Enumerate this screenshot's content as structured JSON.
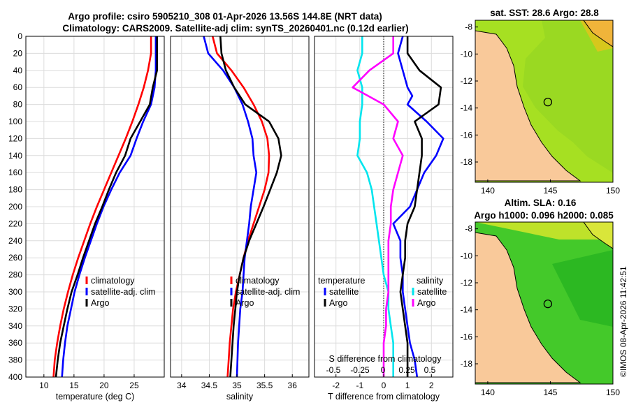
{
  "header": {
    "title_line1": "Argo profile: csiro 5905210_308 01-Apr-2026 13.56S 144.8E (NRT data)",
    "title_line2": "Climatology: CARS2009. Satellite-adj clim: synTS_20260401.nc (0.12d earlier)"
  },
  "timestamp": "©IMOS 08-Apr-2026 11:42:51",
  "colors": {
    "climatology": "#ff0000",
    "satellite": "#0000ff",
    "argo": "#000000",
    "satellite_s": "#00e5ee",
    "argo_s": "#ff00ff",
    "grid": "#dcdcdc"
  },
  "chart_data": [
    {
      "type": "line",
      "name": "temperature",
      "xlabel": "temperature (deg C)",
      "xlim": [
        7,
        30
      ],
      "xticks": [
        10,
        15,
        20,
        25
      ],
      "ylim": [
        0,
        400
      ],
      "yticks": [
        0,
        20,
        40,
        60,
        80,
        100,
        120,
        140,
        160,
        180,
        200,
        220,
        240,
        260,
        280,
        300,
        320,
        340,
        360,
        380,
        400
      ],
      "grid": true,
      "legend": [
        "climatology",
        "satellite-adj. clim",
        "Argo"
      ],
      "series": [
        {
          "name": "climatology",
          "color": "#ff0000",
          "points": [
            [
              27.8,
              0
            ],
            [
              27.8,
              20
            ],
            [
              27.3,
              40
            ],
            [
              26.6,
              60
            ],
            [
              25.7,
              80
            ],
            [
              24.7,
              100
            ],
            [
              23.6,
              120
            ],
            [
              22.4,
              140
            ],
            [
              21.2,
              160
            ],
            [
              20.0,
              180
            ],
            [
              18.8,
              200
            ],
            [
              17.7,
              220
            ],
            [
              16.7,
              240
            ],
            [
              15.7,
              260
            ],
            [
              14.8,
              280
            ],
            [
              14.0,
              300
            ],
            [
              13.3,
              320
            ],
            [
              12.7,
              340
            ],
            [
              12.2,
              360
            ],
            [
              11.8,
              380
            ],
            [
              11.6,
              400
            ]
          ]
        },
        {
          "name": "satellite-adj. clim",
          "color": "#0000ff",
          "points": [
            [
              28.6,
              0
            ],
            [
              28.6,
              20
            ],
            [
              28.6,
              40
            ],
            [
              28.4,
              60
            ],
            [
              27.8,
              80
            ],
            [
              26.5,
              100
            ],
            [
              25.4,
              120
            ],
            [
              24.4,
              140
            ],
            [
              22.6,
              160
            ],
            [
              21.2,
              180
            ],
            [
              19.9,
              200
            ],
            [
              18.8,
              220
            ],
            [
              17.8,
              240
            ],
            [
              16.8,
              260
            ],
            [
              15.9,
              280
            ],
            [
              15.1,
              300
            ],
            [
              14.5,
              320
            ],
            [
              13.9,
              340
            ],
            [
              13.5,
              360
            ],
            [
              13.2,
              380
            ],
            [
              13.0,
              400
            ]
          ]
        },
        {
          "name": "Argo",
          "color": "#000000",
          "points": [
            [
              28.8,
              0
            ],
            [
              28.8,
              20
            ],
            [
              28.8,
              40
            ],
            [
              28.1,
              60
            ],
            [
              27.6,
              80
            ],
            [
              26.0,
              100
            ],
            [
              24.4,
              120
            ],
            [
              23.5,
              140
            ],
            [
              22.0,
              160
            ],
            [
              20.8,
              180
            ],
            [
              19.7,
              200
            ],
            [
              18.5,
              220
            ],
            [
              17.5,
              240
            ],
            [
              16.5,
              260
            ],
            [
              15.6,
              280
            ],
            [
              14.6,
              300
            ],
            [
              13.9,
              320
            ],
            [
              13.3,
              340
            ],
            [
              12.7,
              360
            ],
            [
              12.3,
              380
            ],
            [
              12.0,
              400
            ]
          ]
        }
      ]
    },
    {
      "type": "line",
      "name": "salinity",
      "xlabel": "salinity",
      "xlim": [
        33.8,
        36.3
      ],
      "xticks": [
        34,
        34.5,
        35,
        35.5,
        36
      ],
      "ylim": [
        0,
        400
      ],
      "grid": true,
      "legend": [
        "climatology",
        "satellite-adj. clim",
        "Argo"
      ],
      "series": [
        {
          "name": "climatology",
          "color": "#ff0000",
          "points": [
            [
              34.56,
              0
            ],
            [
              34.64,
              20
            ],
            [
              34.9,
              40
            ],
            [
              35.12,
              60
            ],
            [
              35.3,
              80
            ],
            [
              35.45,
              100
            ],
            [
              35.55,
              120
            ],
            [
              35.58,
              140
            ],
            [
              35.57,
              160
            ],
            [
              35.5,
              180
            ],
            [
              35.4,
              200
            ],
            [
              35.3,
              220
            ],
            [
              35.2,
              240
            ],
            [
              35.12,
              260
            ],
            [
              35.05,
              280
            ],
            [
              34.98,
              300
            ],
            [
              34.93,
              320
            ],
            [
              34.9,
              340
            ],
            [
              34.87,
              360
            ],
            [
              34.85,
              380
            ],
            [
              34.83,
              400
            ]
          ]
        },
        {
          "name": "satellite-adj. clim",
          "color": "#0000ff",
          "points": [
            [
              34.4,
              0
            ],
            [
              34.48,
              20
            ],
            [
              34.75,
              40
            ],
            [
              34.95,
              60
            ],
            [
              35.1,
              80
            ],
            [
              35.2,
              100
            ],
            [
              35.28,
              120
            ],
            [
              35.3,
              140
            ],
            [
              35.35,
              160
            ],
            [
              35.3,
              180
            ],
            [
              35.25,
              200
            ],
            [
              35.22,
              220
            ],
            [
              35.18,
              240
            ],
            [
              35.14,
              260
            ],
            [
              35.12,
              280
            ],
            [
              35.1,
              300
            ],
            [
              35.06,
              320
            ],
            [
              35.04,
              340
            ],
            [
              35.02,
              360
            ],
            [
              35.01,
              380
            ],
            [
              35.0,
              400
            ]
          ]
        },
        {
          "name": "Argo",
          "color": "#000000",
          "points": [
            [
              34.7,
              0
            ],
            [
              34.72,
              20
            ],
            [
              34.8,
              40
            ],
            [
              34.95,
              60
            ],
            [
              35.15,
              80
            ],
            [
              35.58,
              100
            ],
            [
              35.75,
              120
            ],
            [
              35.8,
              140
            ],
            [
              35.72,
              160
            ],
            [
              35.6,
              180
            ],
            [
              35.48,
              200
            ],
            [
              35.35,
              220
            ],
            [
              35.22,
              240
            ],
            [
              35.12,
              260
            ],
            [
              35.05,
              280
            ],
            [
              35.0,
              300
            ],
            [
              34.97,
              320
            ],
            [
              34.94,
              340
            ],
            [
              34.92,
              360
            ],
            [
              34.9,
              380
            ],
            [
              34.88,
              400
            ]
          ]
        }
      ]
    },
    {
      "type": "line",
      "name": "differences",
      "xlabel": "T difference from climatology",
      "xlabel_top": "S difference from climatology",
      "xlim": [
        -2.9,
        2.9
      ],
      "xticks": [
        -2,
        -1,
        0,
        1,
        2
      ],
      "xticks_top": [
        "-0.5",
        "-0.25",
        "0",
        "0.25",
        "0.5"
      ],
      "ylim": [
        0,
        400
      ],
      "grid": true,
      "legend_temperature": {
        "title": "temperature",
        "entries": [
          "satellite",
          "Argo"
        ]
      },
      "legend_salinity": {
        "title": "salinity",
        "entries": [
          "satellite",
          "Argo"
        ]
      },
      "series": [
        {
          "name": "T satellite",
          "color": "#0000ff",
          "points": [
            [
              0.8,
              0
            ],
            [
              0.6,
              20
            ],
            [
              0.8,
              40
            ],
            [
              1.0,
              60
            ],
            [
              1.2,
              70
            ],
            [
              1.0,
              80
            ],
            [
              1.8,
              100
            ],
            [
              2.5,
              120
            ],
            [
              2.2,
              140
            ],
            [
              1.7,
              160
            ],
            [
              1.4,
              180
            ],
            [
              1.1,
              200
            ],
            [
              0.4,
              220
            ],
            [
              0.7,
              240
            ],
            [
              0.7,
              260
            ],
            [
              0.8,
              280
            ],
            [
              0.8,
              300
            ],
            [
              0.9,
              320
            ],
            [
              1.0,
              340
            ],
            [
              1.1,
              360
            ],
            [
              1.3,
              380
            ],
            [
              1.4,
              400
            ]
          ]
        },
        {
          "name": "T Argo",
          "color": "#000000",
          "points": [
            [
              1.0,
              0
            ],
            [
              1.0,
              20
            ],
            [
              1.5,
              40
            ],
            [
              2.4,
              60
            ],
            [
              2.3,
              80
            ],
            [
              1.3,
              100
            ],
            [
              1.6,
              120
            ],
            [
              1.6,
              140
            ],
            [
              1.5,
              160
            ],
            [
              1.4,
              180
            ],
            [
              1.3,
              200
            ],
            [
              1.0,
              220
            ],
            [
              0.9,
              240
            ],
            [
              0.9,
              260
            ],
            [
              0.8,
              280
            ],
            [
              0.7,
              300
            ],
            [
              0.8,
              320
            ],
            [
              0.9,
              340
            ],
            [
              1.0,
              360
            ],
            [
              1.0,
              380
            ],
            [
              1.0,
              400
            ]
          ]
        },
        {
          "name": "S satellite",
          "color": "#00e5ee",
          "points": [
            [
              -0.9,
              0
            ],
            [
              -0.9,
              20
            ],
            [
              -1.1,
              40
            ],
            [
              -0.9,
              60
            ],
            [
              -0.9,
              80
            ],
            [
              -1.0,
              100
            ],
            [
              -1.0,
              120
            ],
            [
              -1.1,
              140
            ],
            [
              -0.7,
              160
            ],
            [
              -0.5,
              180
            ],
            [
              -0.4,
              200
            ],
            [
              -0.3,
              220
            ],
            [
              -0.2,
              240
            ],
            [
              -0.1,
              260
            ],
            [
              0.0,
              280
            ],
            [
              0.2,
              300
            ],
            [
              0.2,
              320
            ],
            [
              0.3,
              340
            ],
            [
              0.4,
              360
            ],
            [
              0.4,
              380
            ],
            [
              0.4,
              400
            ]
          ]
        },
        {
          "name": "S Argo",
          "color": "#ff00ff",
          "points": [
            [
              0.4,
              0
            ],
            [
              0.4,
              20
            ],
            [
              -0.6,
              40
            ],
            [
              -1.3,
              60
            ],
            [
              0.0,
              80
            ],
            [
              0.6,
              100
            ],
            [
              0.4,
              120
            ],
            [
              0.8,
              140
            ],
            [
              0.6,
              160
            ],
            [
              0.4,
              180
            ],
            [
              0.3,
              200
            ],
            [
              0.3,
              220
            ],
            [
              0.2,
              240
            ],
            [
              0.2,
              260
            ],
            [
              0.2,
              280
            ],
            [
              0.2,
              300
            ],
            [
              0.1,
              320
            ],
            [
              0.1,
              340
            ],
            [
              0.0,
              360
            ],
            [
              0.0,
              380
            ],
            [
              0.0,
              400
            ]
          ]
        }
      ]
    }
  ],
  "maps": [
    {
      "name": "sst-map",
      "title": "sat. SST: 28.6 Argo: 28.8",
      "xlim": [
        139,
        150
      ],
      "ylim": [
        -19.5,
        -7.5
      ],
      "xticks": [
        140,
        145,
        150
      ],
      "yticks": [
        -8,
        -10,
        -12,
        -14,
        -16,
        -18
      ],
      "profile_marker": {
        "lon": 144.8,
        "lat": -13.56
      }
    },
    {
      "name": "sla-map",
      "title_line1": "Altim. SLA: 0.16",
      "title_line2": "Argo h1000: 0.096 h2000: 0.085",
      "xlim": [
        139,
        150
      ],
      "ylim": [
        -19.5,
        -7.5
      ],
      "xticks": [
        140,
        145,
        150
      ],
      "yticks": [
        -8,
        -10,
        -12,
        -14,
        -16,
        -18
      ],
      "profile_marker": {
        "lon": 144.8,
        "lat": -13.56
      }
    }
  ]
}
